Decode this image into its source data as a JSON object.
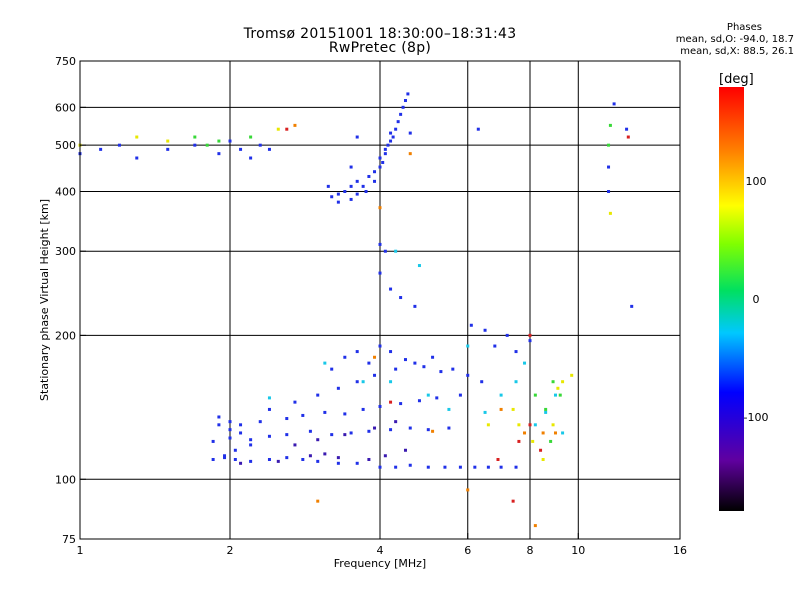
{
  "header": {
    "title_line1": "Tromsø 20151001 18:30:00–18:31:43",
    "title_line2": "RwPretec (8p)",
    "stats_title": "Phases",
    "stats_line1": "mean, sd,O:  -94.0, 18.7",
    "stats_line2": "mean, sd,X:  88.5, 26.1"
  },
  "chart_data": {
    "type": "scatter",
    "title": "Tromsø 20151001 18:30:00–18:31:43",
    "subtitle": "RwPretec (8p)",
    "xlabel": "Frequency [MHz]",
    "ylabel": "Stationary phase Virtual Height [km]",
    "x_scale": "log",
    "y_scale": "log",
    "xlim": [
      1,
      16
    ],
    "ylim": [
      75,
      750
    ],
    "xticks": [
      1,
      2,
      4,
      6,
      8,
      10,
      16
    ],
    "yticks": [
      75,
      100,
      200,
      300,
      400,
      500,
      600,
      750
    ],
    "xgrid": [
      2,
      4,
      6,
      8,
      10
    ],
    "ygrid": [
      100,
      200,
      300,
      400,
      500,
      600
    ],
    "grid": true,
    "colorbar": {
      "label": "[deg]",
      "range": [
        -180,
        180
      ],
      "ticks": [
        100,
        0,
        -100
      ]
    },
    "series": [
      {
        "color": "#2030e8",
        "points": [
          [
            1.85,
            110
          ],
          [
            1.95,
            111
          ],
          [
            2.05,
            110
          ],
          [
            2.2,
            109
          ],
          [
            2.4,
            110
          ],
          [
            2.6,
            111
          ],
          [
            2.8,
            110
          ],
          [
            3.0,
            109
          ],
          [
            3.3,
            108
          ],
          [
            3.6,
            108
          ],
          [
            4.0,
            106
          ],
          [
            4.3,
            106
          ],
          [
            4.6,
            107
          ],
          [
            5.0,
            106
          ],
          [
            5.4,
            106
          ],
          [
            5.8,
            106
          ],
          [
            6.2,
            106
          ],
          [
            6.6,
            106
          ],
          [
            7.0,
            106
          ],
          [
            7.5,
            106
          ],
          [
            1.85,
            120
          ],
          [
            2.0,
            122
          ],
          [
            2.2,
            121
          ],
          [
            2.4,
            123
          ],
          [
            2.6,
            124
          ],
          [
            2.9,
            126
          ],
          [
            3.2,
            124
          ],
          [
            3.5,
            125
          ],
          [
            3.8,
            126
          ],
          [
            4.2,
            127
          ],
          [
            4.6,
            128
          ],
          [
            5.0,
            127
          ],
          [
            5.5,
            128
          ],
          [
            1.9,
            130
          ],
          [
            2.0,
            132
          ],
          [
            2.1,
            130
          ],
          [
            2.3,
            132
          ],
          [
            2.6,
            134
          ],
          [
            2.8,
            136
          ],
          [
            3.1,
            138
          ],
          [
            3.4,
            137
          ],
          [
            3.7,
            140
          ],
          [
            4.0,
            142
          ],
          [
            4.4,
            144
          ],
          [
            4.8,
            146
          ],
          [
            5.2,
            148
          ],
          [
            5.8,
            150
          ],
          [
            2.4,
            140
          ],
          [
            2.7,
            145
          ],
          [
            3.0,
            150
          ],
          [
            3.3,
            155
          ],
          [
            3.6,
            160
          ],
          [
            3.9,
            165
          ],
          [
            4.3,
            170
          ],
          [
            4.7,
            175
          ],
          [
            5.1,
            180
          ],
          [
            5.6,
            170
          ],
          [
            6.0,
            165
          ],
          [
            6.4,
            160
          ],
          [
            3.2,
            170
          ],
          [
            3.4,
            180
          ],
          [
            3.6,
            185
          ],
          [
            3.8,
            175
          ],
          [
            4.0,
            190
          ],
          [
            4.2,
            185
          ],
          [
            4.5,
            178
          ],
          [
            4.9,
            172
          ],
          [
            5.3,
            168
          ],
          [
            1.9,
            135
          ],
          [
            2.0,
            127
          ],
          [
            2.1,
            125
          ],
          [
            2.2,
            118
          ],
          [
            1.95,
            112
          ],
          [
            2.05,
            115
          ],
          [
            3.2,
            390
          ],
          [
            3.3,
            395
          ],
          [
            3.4,
            400
          ],
          [
            3.5,
            410
          ],
          [
            3.6,
            420
          ],
          [
            3.7,
            410
          ],
          [
            3.8,
            430
          ],
          [
            3.9,
            440
          ],
          [
            4.0,
            450
          ],
          [
            4.05,
            460
          ],
          [
            4.1,
            480
          ],
          [
            4.15,
            500
          ],
          [
            4.2,
            510
          ],
          [
            4.25,
            520
          ],
          [
            4.3,
            540
          ],
          [
            4.35,
            560
          ],
          [
            4.4,
            580
          ],
          [
            4.45,
            600
          ],
          [
            4.5,
            620
          ],
          [
            4.55,
            640
          ],
          [
            3.15,
            410
          ],
          [
            3.3,
            380
          ],
          [
            3.5,
            385
          ],
          [
            3.6,
            395
          ],
          [
            3.75,
            400
          ],
          [
            3.9,
            420
          ],
          [
            4.0,
            470
          ],
          [
            4.1,
            490
          ],
          [
            4.2,
            530
          ],
          [
            1.0,
            480
          ],
          [
            1.1,
            490
          ],
          [
            1.2,
            500
          ],
          [
            1.3,
            470
          ],
          [
            1.5,
            490
          ],
          [
            1.7,
            500
          ],
          [
            1.9,
            480
          ],
          [
            2.0,
            510
          ],
          [
            2.1,
            490
          ],
          [
            2.2,
            470
          ],
          [
            2.3,
            500
          ],
          [
            2.4,
            490
          ],
          [
            4.0,
            310
          ],
          [
            4.1,
            300
          ],
          [
            4.0,
            270
          ],
          [
            4.2,
            250
          ],
          [
            4.4,
            240
          ],
          [
            4.7,
            230
          ],
          [
            6.1,
            210
          ],
          [
            6.5,
            205
          ],
          [
            7.2,
            200
          ],
          [
            8.0,
            195
          ],
          [
            6.8,
            190
          ],
          [
            7.5,
            185
          ],
          [
            3.6,
            520
          ],
          [
            3.5,
            450
          ],
          [
            4.6,
            530
          ],
          [
            6.3,
            540
          ],
          [
            11.8,
            610
          ],
          [
            12.5,
            540
          ],
          [
            11.5,
            450
          ],
          [
            11.5,
            400
          ],
          [
            12.8,
            230
          ]
        ]
      },
      {
        "color": "#3a1ab0",
        "points": [
          [
            2.1,
            108
          ],
          [
            2.5,
            109
          ],
          [
            2.9,
            112
          ],
          [
            3.1,
            113
          ],
          [
            3.3,
            111
          ],
          [
            3.8,
            110
          ],
          [
            4.1,
            112
          ],
          [
            4.5,
            115
          ],
          [
            3.4,
            124
          ],
          [
            3.9,
            128
          ],
          [
            4.3,
            132
          ],
          [
            2.7,
            118
          ],
          [
            3.0,
            121
          ]
        ]
      },
      {
        "color": "#18c8e8",
        "points": [
          [
            3.7,
            160
          ],
          [
            4.2,
            160
          ],
          [
            5.0,
            150
          ],
          [
            5.5,
            140
          ],
          [
            6.5,
            138
          ],
          [
            7.0,
            150
          ],
          [
            7.5,
            160
          ],
          [
            8.2,
            130
          ],
          [
            8.6,
            138
          ],
          [
            9.0,
            150
          ],
          [
            9.3,
            125
          ],
          [
            2.4,
            148
          ],
          [
            3.1,
            175
          ],
          [
            4.3,
            300
          ],
          [
            4.8,
            280
          ],
          [
            6.0,
            190
          ],
          [
            7.8,
            175
          ]
        ]
      },
      {
        "color": "#38d838",
        "points": [
          [
            1.7,
            520
          ],
          [
            1.8,
            500
          ],
          [
            1.9,
            510
          ],
          [
            2.2,
            520
          ],
          [
            8.6,
            140
          ],
          [
            8.9,
            160
          ],
          [
            9.2,
            150
          ],
          [
            11.5,
            500
          ],
          [
            11.6,
            550
          ],
          [
            8.2,
            150
          ],
          [
            8.8,
            120
          ]
        ]
      },
      {
        "color": "#e8e800",
        "points": [
          [
            1.3,
            520
          ],
          [
            1.5,
            510
          ],
          [
            2.5,
            540
          ],
          [
            6.6,
            130
          ],
          [
            7.4,
            140
          ],
          [
            7.6,
            130
          ],
          [
            8.1,
            120
          ],
          [
            8.9,
            130
          ],
          [
            9.1,
            155
          ],
          [
            9.3,
            160
          ],
          [
            9.7,
            165
          ],
          [
            8.5,
            110
          ],
          [
            1.0,
            500
          ],
          [
            11.6,
            360
          ]
        ]
      },
      {
        "color": "#f08000",
        "points": [
          [
            2.7,
            550
          ],
          [
            4.6,
            480
          ],
          [
            4.0,
            370
          ],
          [
            7.0,
            140
          ],
          [
            7.8,
            125
          ],
          [
            8.5,
            125
          ],
          [
            9.0,
            125
          ],
          [
            3.0,
            90
          ],
          [
            6.0,
            95
          ],
          [
            8.2,
            80
          ],
          [
            3.9,
            180
          ],
          [
            5.1,
            126
          ]
        ]
      },
      {
        "color": "#d82020",
        "points": [
          [
            2.6,
            540
          ],
          [
            8.4,
            115
          ],
          [
            8.0,
            130
          ],
          [
            7.6,
            120
          ],
          [
            6.9,
            110
          ],
          [
            4.2,
            145
          ],
          [
            7.4,
            90
          ],
          [
            8.0,
            200
          ],
          [
            12.6,
            520
          ]
        ]
      }
    ]
  }
}
